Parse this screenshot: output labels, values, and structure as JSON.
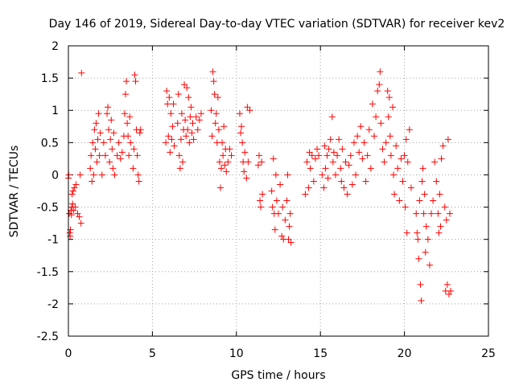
{
  "chart_data": {
    "type": "scatter",
    "title": "Day 146 of 2019, Sidereal Day-to-day VTEC variation (SDTVAR) for receiver kev2",
    "xlabel": "GPS time / hours",
    "ylabel": "SDTVAR / TECUs",
    "xlim": [
      0,
      25
    ],
    "ylim": [
      -2.5,
      2
    ],
    "xticks": [
      0,
      5,
      10,
      15,
      20,
      25
    ],
    "yticks": [
      -2.5,
      -2,
      -1.5,
      -1,
      -0.5,
      0,
      0.5,
      1,
      1.5,
      2
    ],
    "xtick_labels": [
      "0",
      "5",
      "10",
      "15",
      "20",
      "25"
    ],
    "ytick_labels": [
      "-2.5",
      "-2",
      "-1.5",
      "-1",
      "-0.5",
      "0",
      "0.5",
      "1",
      "1.5",
      "2"
    ],
    "grid": true,
    "marker": "plus",
    "marker_color": "#ff0000",
    "series": [
      {
        "name": "SDTVAR",
        "points": [
          [
            0.0,
            -0.05
          ],
          [
            0.02,
            0.0
          ],
          [
            0.05,
            -0.6
          ],
          [
            0.08,
            -0.9
          ],
          [
            0.1,
            -0.95
          ],
          [
            0.12,
            -0.85
          ],
          [
            0.15,
            -0.55
          ],
          [
            0.18,
            -0.62
          ],
          [
            0.2,
            -0.5
          ],
          [
            0.22,
            -0.3
          ],
          [
            0.25,
            -0.45
          ],
          [
            0.28,
            -0.25
          ],
          [
            0.3,
            -0.55
          ],
          [
            0.35,
            -0.2
          ],
          [
            0.4,
            -0.5
          ],
          [
            0.45,
            -0.15
          ],
          [
            0.55,
            -0.6
          ],
          [
            0.65,
            -0.65
          ],
          [
            0.7,
            0.0
          ],
          [
            0.75,
            -0.75
          ],
          [
            0.78,
            1.58
          ],
          [
            1.3,
            0.1
          ],
          [
            1.35,
            0.3
          ],
          [
            1.4,
            -0.1
          ],
          [
            1.45,
            0.5
          ],
          [
            1.5,
            0.0
          ],
          [
            1.55,
            0.7
          ],
          [
            1.6,
            0.4
          ],
          [
            1.65,
            0.8
          ],
          [
            1.7,
            0.2
          ],
          [
            1.75,
            0.55
          ],
          [
            1.8,
            0.95
          ],
          [
            1.85,
            0.3
          ],
          [
            1.9,
            0.65
          ],
          [
            2.0,
            0.0
          ],
          [
            2.1,
            0.5
          ],
          [
            2.2,
            0.3
          ],
          [
            2.3,
            0.95
          ],
          [
            2.35,
            1.05
          ],
          [
            2.4,
            0.7
          ],
          [
            2.45,
            0.2
          ],
          [
            2.5,
            0.55
          ],
          [
            2.55,
            0.85
          ],
          [
            2.6,
            0.4
          ],
          [
            2.65,
            0.1
          ],
          [
            2.7,
            0.65
          ],
          [
            2.75,
            0.0
          ],
          [
            2.9,
            0.3
          ],
          [
            3.0,
            0.5
          ],
          [
            3.1,
            0.25
          ],
          [
            3.2,
            0.35
          ],
          [
            3.3,
            0.6
          ],
          [
            3.35,
            0.95
          ],
          [
            3.4,
            1.25
          ],
          [
            3.45,
            1.45
          ],
          [
            3.5,
            0.8
          ],
          [
            3.55,
            0.6
          ],
          [
            3.6,
            0.3
          ],
          [
            3.65,
            0.9
          ],
          [
            3.7,
            0.5
          ],
          [
            3.85,
            0.1
          ],
          [
            3.9,
            0.4
          ],
          [
            3.95,
            1.55
          ],
          [
            4.0,
            1.45
          ],
          [
            4.05,
            0.7
          ],
          [
            4.1,
            0.3
          ],
          [
            4.15,
            0.0
          ],
          [
            4.2,
            -0.1
          ],
          [
            4.25,
            0.65
          ],
          [
            4.3,
            0.7
          ],
          [
            5.8,
            0.5
          ],
          [
            5.85,
            1.3
          ],
          [
            5.9,
            1.1
          ],
          [
            5.95,
            0.6
          ],
          [
            6.0,
            1.2
          ],
          [
            6.05,
            0.35
          ],
          [
            6.1,
            0.95
          ],
          [
            6.15,
            0.55
          ],
          [
            6.2,
            0.75
          ],
          [
            6.25,
            1.1
          ],
          [
            6.3,
            0.45
          ],
          [
            6.5,
            0.8
          ],
          [
            6.55,
            1.25
          ],
          [
            6.6,
            0.3
          ],
          [
            6.65,
            0.1
          ],
          [
            6.7,
            0.55
          ],
          [
            6.75,
            0.95
          ],
          [
            6.8,
            0.2
          ],
          [
            6.85,
            0.7
          ],
          [
            6.9,
            1.4
          ],
          [
            6.95,
            0.85
          ],
          [
            7.0,
            0.6
          ],
          [
            7.05,
            1.35
          ],
          [
            7.1,
            0.7
          ],
          [
            7.15,
            1.2
          ],
          [
            7.2,
            0.5
          ],
          [
            7.25,
            0.9
          ],
          [
            7.3,
            1.05
          ],
          [
            7.35,
            0.65
          ],
          [
            7.4,
            0.8
          ],
          [
            7.45,
            0.55
          ],
          [
            7.6,
            0.9
          ],
          [
            7.7,
            0.7
          ],
          [
            7.8,
            0.85
          ],
          [
            7.9,
            0.95
          ],
          [
            8.5,
            1.0
          ],
          [
            8.55,
            0.6
          ],
          [
            8.6,
            1.6
          ],
          [
            8.65,
            1.45
          ],
          [
            8.7,
            1.25
          ],
          [
            8.75,
            0.8
          ],
          [
            8.8,
            0.95
          ],
          [
            8.85,
            0.5
          ],
          [
            8.9,
            1.2
          ],
          [
            8.95,
            0.7
          ],
          [
            9.0,
            0.2
          ],
          [
            9.05,
            -0.2
          ],
          [
            9.1,
            0.1
          ],
          [
            9.15,
            0.5
          ],
          [
            9.2,
            0.3
          ],
          [
            9.25,
            0.75
          ],
          [
            9.3,
            0.15
          ],
          [
            9.35,
            0.4
          ],
          [
            9.4,
            0.05
          ],
          [
            9.5,
            0.2
          ],
          [
            9.6,
            0.4
          ],
          [
            9.7,
            0.3
          ],
          [
            10.2,
            0.95
          ],
          [
            10.25,
            0.65
          ],
          [
            10.3,
            0.75
          ],
          [
            10.35,
            0.5
          ],
          [
            10.4,
            0.2
          ],
          [
            10.45,
            0.05
          ],
          [
            10.5,
            0.35
          ],
          [
            10.6,
            -0.05
          ],
          [
            10.65,
            1.05
          ],
          [
            10.7,
            0.2
          ],
          [
            10.8,
            1.0
          ],
          [
            11.3,
            0.15
          ],
          [
            11.35,
            0.3
          ],
          [
            11.4,
            -0.4
          ],
          [
            11.45,
            -0.5
          ],
          [
            11.5,
            0.2
          ],
          [
            11.55,
            -0.3
          ],
          [
            12.1,
            -0.25
          ],
          [
            12.15,
            -0.5
          ],
          [
            12.2,
            0.25
          ],
          [
            12.25,
            -0.6
          ],
          [
            12.3,
            -0.85
          ],
          [
            12.35,
            0.0
          ],
          [
            12.4,
            -0.4
          ],
          [
            12.5,
            -0.6
          ],
          [
            12.6,
            -0.15
          ],
          [
            12.7,
            -0.95
          ],
          [
            12.75,
            -0.5
          ],
          [
            12.8,
            -1.0
          ],
          [
            12.9,
            -0.7
          ],
          [
            13.0,
            -0.4
          ],
          [
            13.05,
            0.0
          ],
          [
            13.1,
            -1.0
          ],
          [
            13.15,
            -0.8
          ],
          [
            13.2,
            -0.6
          ],
          [
            13.25,
            -1.05
          ],
          [
            14.1,
            -0.3
          ],
          [
            14.2,
            0.2
          ],
          [
            14.3,
            -0.2
          ],
          [
            14.35,
            0.35
          ],
          [
            14.4,
            0.1
          ],
          [
            14.5,
            0.3
          ],
          [
            14.6,
            -0.1
          ],
          [
            14.7,
            0.25
          ],
          [
            14.8,
            0.4
          ],
          [
            14.9,
            0.3
          ],
          [
            15.1,
            0.0
          ],
          [
            15.2,
            -0.2
          ],
          [
            15.25,
            0.45
          ],
          [
            15.3,
            0.1
          ],
          [
            15.4,
            0.3
          ],
          [
            15.45,
            -0.05
          ],
          [
            15.5,
            0.4
          ],
          [
            15.6,
            0.55
          ],
          [
            15.7,
            0.9
          ],
          [
            15.75,
            0.2
          ],
          [
            15.8,
            0.35
          ],
          [
            15.9,
            0.0
          ],
          [
            16.0,
            0.3
          ],
          [
            16.1,
            0.55
          ],
          [
            16.2,
            0.1
          ],
          [
            16.25,
            -0.1
          ],
          [
            16.3,
            0.4
          ],
          [
            16.4,
            -0.2
          ],
          [
            16.5,
            0.2
          ],
          [
            16.6,
            -0.3
          ],
          [
            16.7,
            0.15
          ],
          [
            16.8,
            0.3
          ],
          [
            16.9,
            -0.15
          ],
          [
            17.0,
            0.5
          ],
          [
            17.1,
            0.0
          ],
          [
            17.2,
            0.6
          ],
          [
            17.3,
            0.35
          ],
          [
            17.4,
            0.75
          ],
          [
            17.5,
            0.25
          ],
          [
            17.6,
            0.5
          ],
          [
            17.7,
            -0.1
          ],
          [
            17.8,
            0.3
          ],
          [
            17.9,
            0.7
          ],
          [
            18.0,
            0.1
          ],
          [
            18.1,
            1.1
          ],
          [
            18.2,
            0.6
          ],
          [
            18.3,
            0.9
          ],
          [
            18.4,
            1.3
          ],
          [
            18.5,
            1.4
          ],
          [
            18.55,
            1.6
          ],
          [
            18.6,
            0.8
          ],
          [
            18.7,
            0.4
          ],
          [
            18.8,
            0.2
          ],
          [
            18.9,
            0.5
          ],
          [
            19.0,
            1.3
          ],
          [
            19.05,
            0.9
          ],
          [
            19.1,
            1.2
          ],
          [
            19.15,
            0.6
          ],
          [
            19.2,
            0.3
          ],
          [
            19.3,
            1.05
          ],
          [
            19.35,
            0.0
          ],
          [
            19.4,
            -0.3
          ],
          [
            19.5,
            0.45
          ],
          [
            19.6,
            0.1
          ],
          [
            19.7,
            -0.4
          ],
          [
            19.8,
            0.25
          ],
          [
            19.9,
            -0.1
          ],
          [
            20.0,
            0.3
          ],
          [
            20.05,
            -0.5
          ],
          [
            20.1,
            0.55
          ],
          [
            20.15,
            -0.9
          ],
          [
            20.2,
            0.2
          ],
          [
            20.3,
            0.7
          ],
          [
            20.4,
            -0.2
          ],
          [
            20.7,
            -0.6
          ],
          [
            20.75,
            -0.9
          ],
          [
            20.8,
            -1.0
          ],
          [
            20.85,
            -1.3
          ],
          [
            20.9,
            -0.4
          ],
          [
            20.95,
            -1.7
          ],
          [
            21.0,
            -1.95
          ],
          [
            21.05,
            -0.1
          ],
          [
            21.1,
            0.1
          ],
          [
            21.15,
            -0.6
          ],
          [
            21.2,
            -0.3
          ],
          [
            21.25,
            -1.2
          ],
          [
            21.3,
            -0.8
          ],
          [
            21.4,
            -1.0
          ],
          [
            21.5,
            -1.4
          ],
          [
            21.6,
            -0.6
          ],
          [
            21.7,
            -0.4
          ],
          [
            21.8,
            0.2
          ],
          [
            21.9,
            -0.1
          ],
          [
            22.0,
            -0.6
          ],
          [
            22.05,
            -0.9
          ],
          [
            22.1,
            -0.3
          ],
          [
            22.15,
            -0.8
          ],
          [
            22.2,
            0.25
          ],
          [
            22.3,
            0.45
          ],
          [
            22.4,
            -0.5
          ],
          [
            22.45,
            -1.8
          ],
          [
            22.5,
            -0.7
          ],
          [
            22.55,
            -1.7
          ],
          [
            22.6,
            0.55
          ],
          [
            22.65,
            -1.85
          ],
          [
            22.7,
            -0.6
          ],
          [
            22.75,
            -1.8
          ]
        ]
      }
    ]
  }
}
